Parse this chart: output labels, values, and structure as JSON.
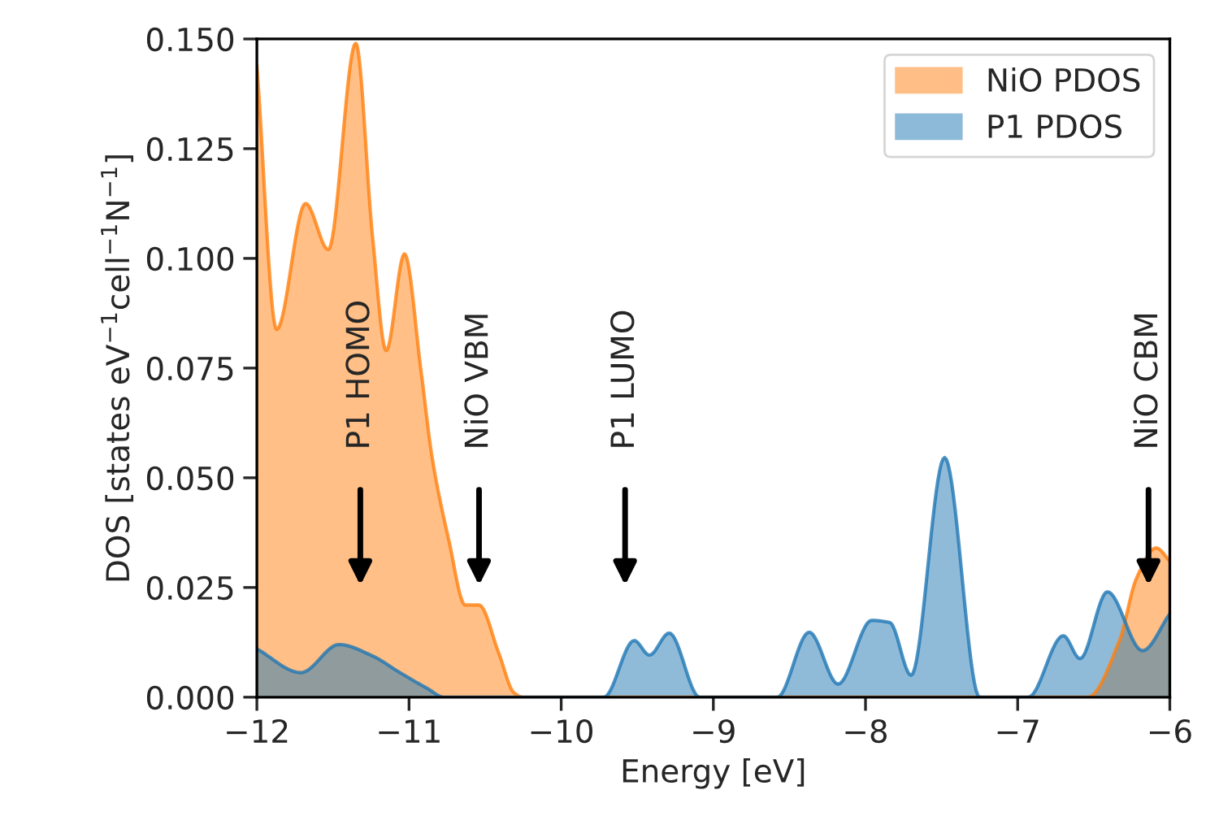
{
  "chart_data": {
    "type": "area",
    "xlabel": "Energy [eV]",
    "ylabel": "DOS [states eV$^{−1}$cell$^{−1}$N$^{−1}$]",
    "xlim": [
      -12,
      -6
    ],
    "xticks": [
      -12,
      -11,
      -10,
      -9,
      -8,
      -7,
      -6
    ],
    "ylim": [
      0,
      0.15
    ],
    "yticks": [
      {
        "value": 0,
        "label": "0.000"
      },
      {
        "value": 0.025,
        "label": "0.025"
      },
      {
        "value": 0.05,
        "label": "0.050"
      },
      {
        "value": 0.075,
        "label": "0.075"
      },
      {
        "value": 0.1,
        "label": "0.100"
      },
      {
        "value": 0.125,
        "label": "0.125"
      },
      {
        "value": 0.15,
        "label": "0.150"
      }
    ],
    "grid": false,
    "legend": "top right",
    "series": [
      {
        "name": "NiO PDOS",
        "color": "#ff7f0e",
        "x": [
          -12,
          -11.87,
          -11.68,
          -11.53,
          -11.35,
          -11.24,
          -11.15,
          -11.03,
          -10.92,
          -10.85,
          -10.74,
          -10.63,
          -10.54,
          -10.41,
          -10.31,
          -10.25,
          -6.54,
          -6.33,
          -6.22,
          -6.09,
          -6.0
        ],
        "values": [
          0.144,
          0.0838,
          0.1125,
          0.102,
          0.149,
          0.105,
          0.079,
          0.101,
          0.074,
          0.055,
          0.036,
          0.021,
          0.021,
          0.01,
          0.001,
          0,
          0,
          0.013,
          0.027,
          0.034,
          0.031
        ]
      },
      {
        "name": "P1 PDOS",
        "color": "#1f77b4",
        "x": [
          -12,
          -11.71,
          -11.46,
          -11.24,
          -11.06,
          -10.88,
          -10.77,
          -9.72,
          -9.52,
          -9.42,
          -9.29,
          -9.09,
          -8.58,
          -8.37,
          -8.18,
          -7.96,
          -7.84,
          -7.7,
          -7.48,
          -7.25,
          -6.93,
          -6.7,
          -6.59,
          -6.41,
          -6.18,
          -6.0
        ],
        "values": [
          0.011,
          0.0056,
          0.012,
          0.0094,
          0.0056,
          0.002,
          0,
          0,
          0.0129,
          0.0096,
          0.0146,
          0,
          0,
          0.0148,
          0.003,
          0.0175,
          0.017,
          0.005,
          0.0546,
          0,
          0,
          0.014,
          0.0088,
          0.024,
          0.0106,
          0.019
        ]
      }
    ],
    "ref_lines": [
      {
        "axis": "x",
        "value": -11.32,
        "label": "P1 HOMO"
      },
      {
        "axis": "x",
        "value": -10.54,
        "label": "NiO VBM"
      },
      {
        "axis": "x",
        "value": -9.58,
        "label": "P1 LUMO"
      },
      {
        "axis": "x",
        "value": -6.14,
        "label": "NiO CBM"
      }
    ]
  }
}
